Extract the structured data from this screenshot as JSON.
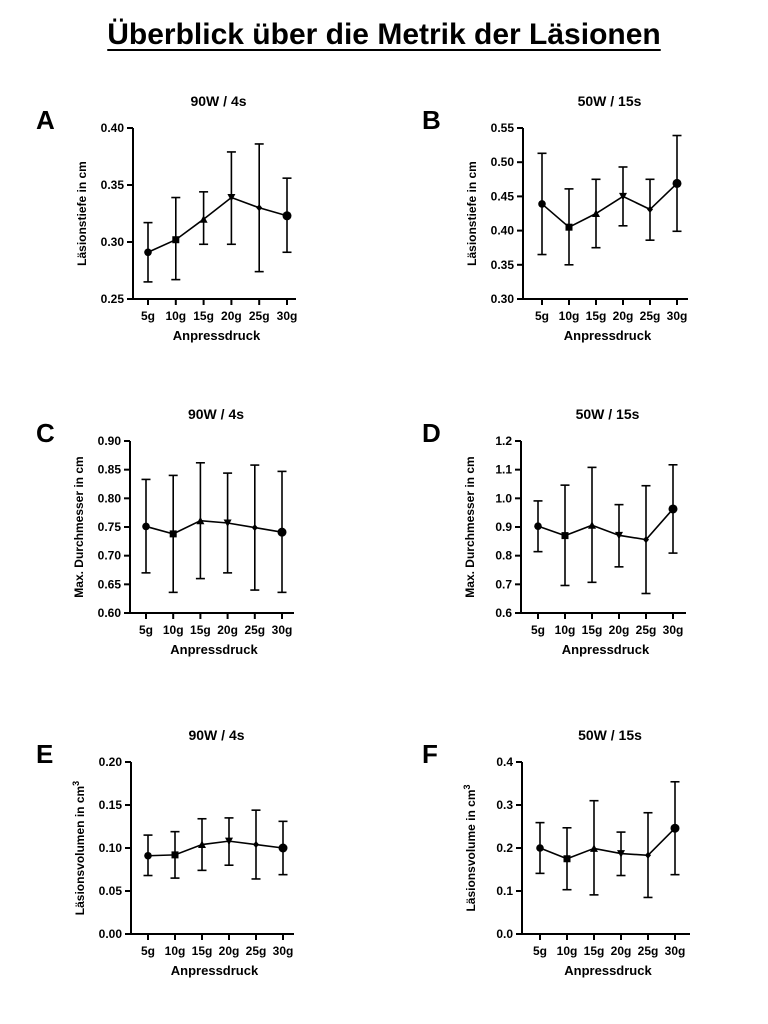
{
  "page_title": "Überblick über die Metrik der Läsionen",
  "chart_data": [
    {
      "panel": "A",
      "type": "line",
      "title": "90W / 4s",
      "xlabel": "Anpressdruck",
      "ylabel": "Läsionstiefe in cm",
      "ylabel_sup": "",
      "categories": [
        "5g",
        "10g",
        "15g",
        "20g",
        "25g",
        "30g"
      ],
      "values": [
        0.291,
        0.302,
        0.32,
        0.339,
        0.33,
        0.323
      ],
      "err_low": [
        0.265,
        0.267,
        0.298,
        0.298,
        0.274,
        0.291
      ],
      "err_high": [
        0.317,
        0.339,
        0.344,
        0.379,
        0.386,
        0.356
      ],
      "markers": [
        "circle",
        "square",
        "triangle-up",
        "triangle-down",
        "diamond",
        "circle-large"
      ],
      "ylim": [
        0.25,
        0.4
      ],
      "yticks": [
        0.25,
        0.3,
        0.35,
        0.4
      ],
      "ytick_labels": [
        "0.25",
        "0.30",
        "0.35",
        "0.40"
      ]
    },
    {
      "panel": "B",
      "type": "line",
      "title": "50W / 15s",
      "xlabel": "Anpressdruck",
      "ylabel": "Läsionstiefe in cm",
      "ylabel_sup": "",
      "categories": [
        "5g",
        "10g",
        "15g",
        "20g",
        "25g",
        "30g"
      ],
      "values": [
        0.439,
        0.405,
        0.425,
        0.45,
        0.431,
        0.469
      ],
      "err_low": [
        0.365,
        0.35,
        0.375,
        0.407,
        0.386,
        0.399
      ],
      "err_high": [
        0.513,
        0.461,
        0.475,
        0.493,
        0.475,
        0.539
      ],
      "markers": [
        "circle",
        "square",
        "triangle-up",
        "triangle-down",
        "diamond",
        "circle-large"
      ],
      "ylim": [
        0.3,
        0.55
      ],
      "yticks": [
        0.3,
        0.35,
        0.4,
        0.45,
        0.5,
        0.55
      ],
      "ytick_labels": [
        "0.30",
        "0.35",
        "0.40",
        "0.45",
        "0.50",
        "0.55"
      ]
    },
    {
      "panel": "C",
      "type": "line",
      "title": "90W / 4s",
      "xlabel": "Anpressdruck",
      "ylabel": "Max. Durchmesser in cm",
      "ylabel_sup": "",
      "categories": [
        "5g",
        "10g",
        "15g",
        "20g",
        "25g",
        "30g"
      ],
      "values": [
        0.751,
        0.738,
        0.761,
        0.757,
        0.749,
        0.741
      ],
      "err_low": [
        0.67,
        0.636,
        0.66,
        0.67,
        0.64,
        0.636
      ],
      "err_high": [
        0.833,
        0.84,
        0.862,
        0.844,
        0.858,
        0.847
      ],
      "markers": [
        "circle",
        "square",
        "triangle-up",
        "triangle-down",
        "diamond",
        "circle-large"
      ],
      "ylim": [
        0.6,
        0.9
      ],
      "yticks": [
        0.6,
        0.65,
        0.7,
        0.75,
        0.8,
        0.85,
        0.9
      ],
      "ytick_labels": [
        "0.60",
        "0.65",
        "0.70",
        "0.75",
        "0.80",
        "0.85",
        "0.90"
      ]
    },
    {
      "panel": "D",
      "type": "line",
      "title": "50W / 15s",
      "xlabel": "Anpressdruck",
      "ylabel": "Max. Durchmesser in cm",
      "ylabel_sup": "",
      "categories": [
        "5g",
        "10g",
        "15g",
        "20g",
        "25g",
        "30g"
      ],
      "values": [
        0.903,
        0.87,
        0.906,
        0.871,
        0.856,
        0.963
      ],
      "err_low": [
        0.814,
        0.696,
        0.707,
        0.761,
        0.668,
        0.809
      ],
      "err_high": [
        0.991,
        1.046,
        1.108,
        0.978,
        1.044,
        1.117
      ],
      "markers": [
        "circle",
        "square",
        "triangle-up",
        "triangle-down",
        "diamond",
        "circle-large"
      ],
      "ylim": [
        0.6,
        1.2
      ],
      "yticks": [
        0.6,
        0.7,
        0.8,
        0.9,
        1.0,
        1.1,
        1.2
      ],
      "ytick_labels": [
        "0.6",
        "0.7",
        "0.8",
        "0.9",
        "1.0",
        "1.1",
        "1.2"
      ]
    },
    {
      "panel": "E",
      "type": "line",
      "title": "90W / 4s",
      "xlabel": "Anpressdruck",
      "ylabel": "Läsionsvolumen in cm",
      "ylabel_sup": "3",
      "categories": [
        "5g",
        "10g",
        "15g",
        "20g",
        "25g",
        "30g"
      ],
      "values": [
        0.091,
        0.092,
        0.104,
        0.108,
        0.104,
        0.1
      ],
      "err_low": [
        0.068,
        0.065,
        0.074,
        0.08,
        0.064,
        0.069
      ],
      "err_high": [
        0.115,
        0.119,
        0.134,
        0.135,
        0.144,
        0.131
      ],
      "markers": [
        "circle",
        "square",
        "triangle-up",
        "triangle-down",
        "diamond",
        "circle-large"
      ],
      "ylim": [
        0.0,
        0.2
      ],
      "yticks": [
        0.0,
        0.05,
        0.1,
        0.15,
        0.2
      ],
      "ytick_labels": [
        "0.00",
        "0.05",
        "0.10",
        "0.15",
        "0.20"
      ]
    },
    {
      "panel": "F",
      "type": "line",
      "title": "50W / 15s",
      "xlabel": "Anpressdruck",
      "ylabel": "Läsionsvolume in cm",
      "ylabel_sup": "3",
      "categories": [
        "5g",
        "10g",
        "15g",
        "20g",
        "25g",
        "30g"
      ],
      "values": [
        0.2,
        0.175,
        0.199,
        0.187,
        0.183,
        0.246
      ],
      "err_low": [
        0.141,
        0.103,
        0.091,
        0.136,
        0.085,
        0.138
      ],
      "err_high": [
        0.259,
        0.247,
        0.31,
        0.237,
        0.282,
        0.354
      ],
      "markers": [
        "circle",
        "square",
        "triangle-up",
        "triangle-down",
        "diamond",
        "circle-large"
      ],
      "ylim": [
        0.0,
        0.4
      ],
      "yticks": [
        0.0,
        0.1,
        0.2,
        0.3,
        0.4
      ],
      "ytick_labels": [
        "0.0",
        "0.1",
        "0.2",
        "0.3",
        "0.4"
      ]
    }
  ]
}
